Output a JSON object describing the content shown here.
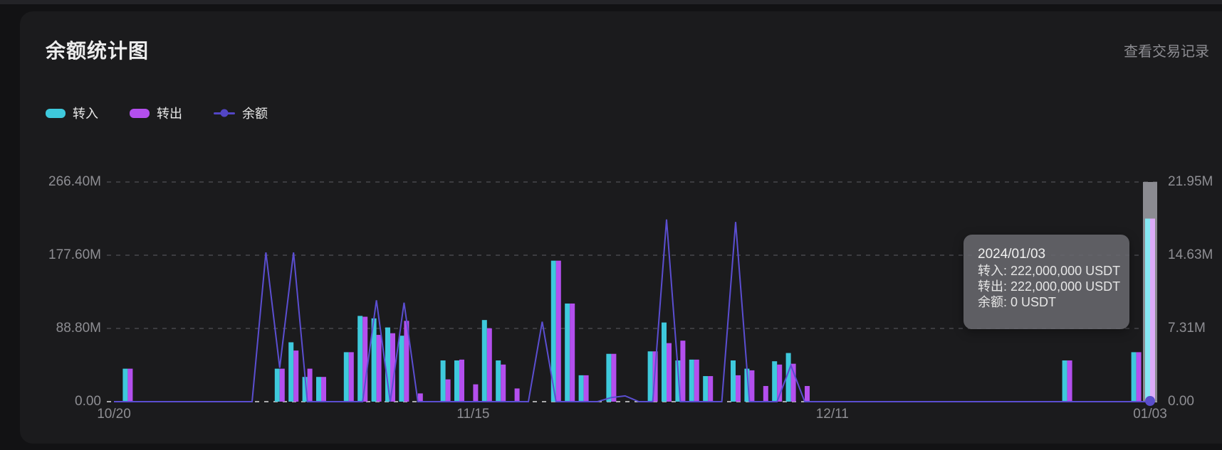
{
  "panel": {
    "title": "余额统计图",
    "link_label": "查看交易记录"
  },
  "legend": [
    {
      "label": "转入",
      "color": "#3ec9dc",
      "marker": "bar-swatch"
    },
    {
      "label": "转出",
      "color": "#b44fee",
      "marker": "bar-swatch"
    },
    {
      "label": "余额",
      "color": "#5346c6",
      "marker": "line-dot"
    }
  ],
  "tooltip": {
    "title": "2024/01/03",
    "lines": [
      "转入: 222,000,000 USDT",
      "转出: 222,000,000 USDT",
      "余额: 0 USDT"
    ]
  },
  "chart_data": {
    "type": "bar+line, dual y-axis, daily categories",
    "x_start": "10/20",
    "x_end": "01/03",
    "n_points": 76,
    "x_tick_labels": [
      "10/20",
      "11/15",
      "12/11",
      "01/03"
    ],
    "x_tick_indices": [
      0,
      26,
      52,
      75
    ],
    "left_axis": {
      "ticks": [
        "0.00",
        "88.80M",
        "177.60M",
        "266.40M"
      ],
      "tick_values": [
        0,
        88.8,
        177.6,
        266.4
      ],
      "max": 266.4,
      "unit": "USDT"
    },
    "right_axis": {
      "ticks": [
        "0.00",
        "7.31M",
        "14.63M",
        "21.95M"
      ],
      "tick_values": [
        0,
        7.31,
        14.63,
        21.95
      ],
      "max": 21.95
    },
    "grid": "horizontal dashed",
    "legend_position": "top-left",
    "highlight_index": 75,
    "highlight_colors": {
      "in": "#86e7f3",
      "out": "#dcabf8",
      "shadow": "#8b8b91",
      "dot": "#5a4ecb"
    },
    "series": [
      {
        "name": "转入",
        "type": "bar",
        "axis": "left",
        "color": "#3ec9dc",
        "unit": "M",
        "points": {
          "1": 40,
          "12": 40,
          "13": 72,
          "14": 30,
          "15": 30,
          "17": 60,
          "18": 104,
          "19": 101,
          "20": 90,
          "21": 80,
          "24": 50,
          "25": 50,
          "27": 99,
          "28": 50,
          "32": 171,
          "33": 119,
          "34": 32,
          "36": 58,
          "39": 61,
          "40": 96,
          "41": 50,
          "42": 51,
          "43": 31,
          "45": 50,
          "46": 40,
          "48": 49,
          "49": 59,
          "69": 50,
          "74": 60,
          "75": 222
        }
      },
      {
        "name": "转出",
        "type": "bar",
        "axis": "left",
        "color": "#b44fee",
        "unit": "M",
        "points": {
          "1": 40,
          "12": 40,
          "13": 62,
          "14": 40,
          "15": 30,
          "17": 60,
          "18": 103,
          "19": 81,
          "20": 83,
          "21": 98,
          "22": 10,
          "24": 27,
          "25": 51,
          "26": 21,
          "27": 89,
          "28": 45,
          "29": 16,
          "32": 171,
          "33": 119,
          "34": 32,
          "36": 58,
          "39": 61,
          "40": 71,
          "41": 74,
          "42": 51,
          "43": 31,
          "45": 32,
          "46": 38,
          "47": 19,
          "48": 45,
          "49": 46,
          "50": 19,
          "69": 50,
          "74": 60,
          "75": 222
        }
      },
      {
        "name": "余额",
        "type": "line",
        "axis": "left",
        "color": "#5b4ed1",
        "unit": "M",
        "default": 0,
        "points": {
          "11": 181,
          "12": 41,
          "13": 181,
          "19": 123,
          "21": 120,
          "31": 97,
          "36": 5,
          "37": 7,
          "40": 221,
          "45": 218,
          "49": 44,
          "75": 0
        }
      }
    ]
  }
}
